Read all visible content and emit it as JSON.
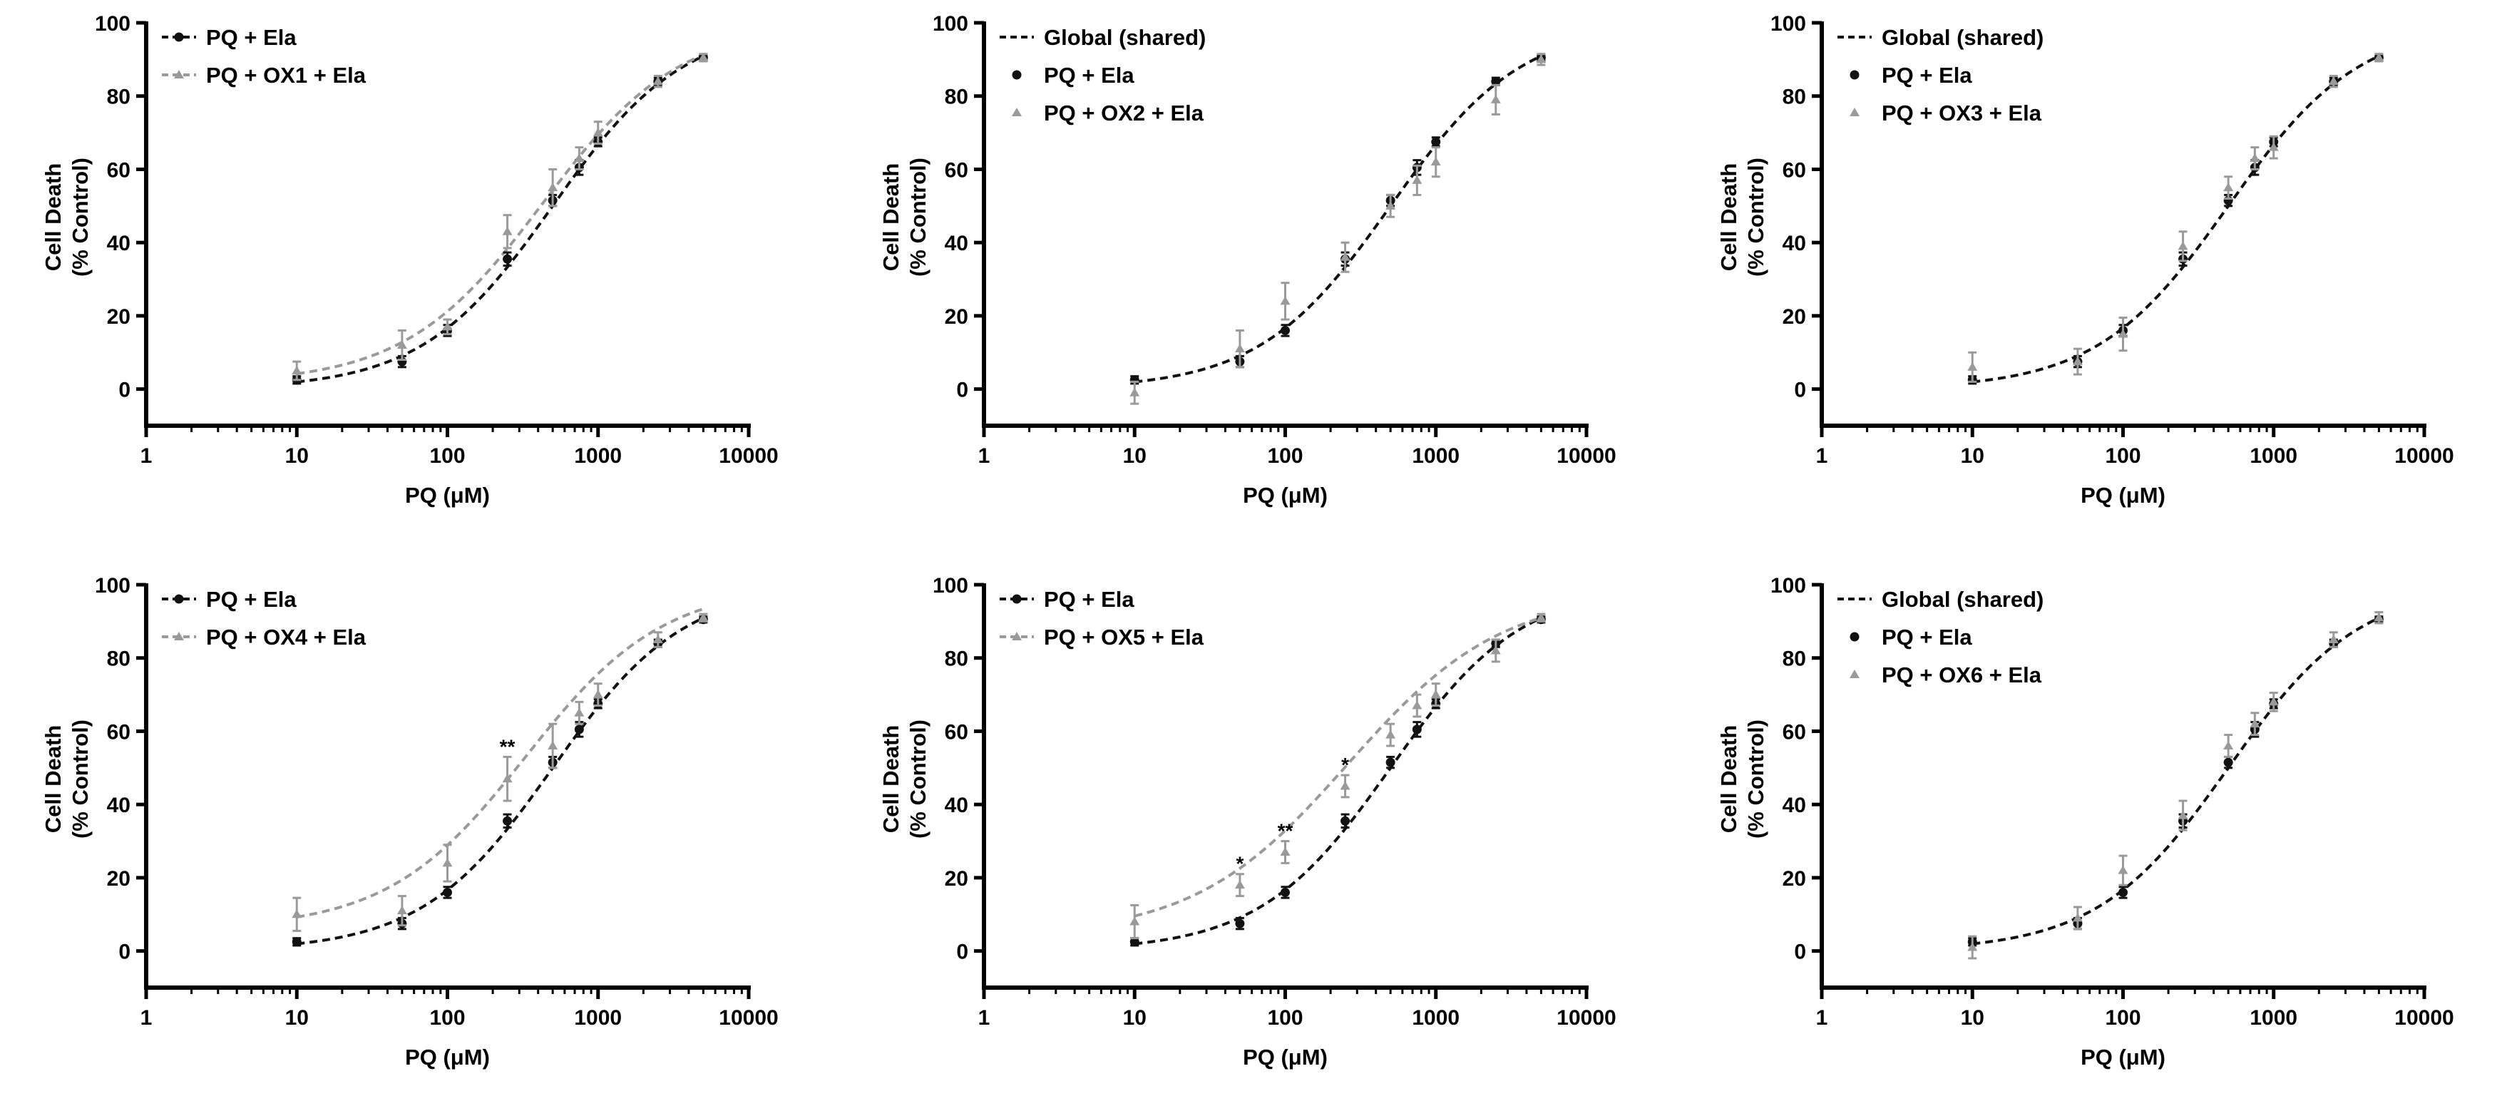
{
  "figure": {
    "panel_count": 6,
    "colors": {
      "black": "#111111",
      "grey": "#9a9a9a",
      "axis": "#000000"
    }
  },
  "chart_data": [
    {
      "type": "scatter",
      "id": "ox1",
      "xlabel": "PQ (μM)",
      "ylabel": "Cell Death",
      "ylabel2": "(% Control)",
      "xscale": "log",
      "xlim": [
        1,
        10000
      ],
      "ylim": [
        -10,
        100
      ],
      "x_ticks": [
        1,
        10,
        100,
        1000,
        10000
      ],
      "x_tick_labels": [
        "1",
        "10",
        "100",
        "1000",
        "10000"
      ],
      "y_ticks": [
        0,
        20,
        40,
        60,
        80,
        100
      ],
      "y_tick_labels": [
        "0",
        "20",
        "40",
        "60",
        "80",
        "100"
      ],
      "legend_position": "top-left",
      "legend": [
        {
          "label": "PQ + Ela",
          "color": "#111111",
          "marker": "circle",
          "style": "line"
        },
        {
          "label": "PQ + OX1 + Ela",
          "color": "#9a9a9a",
          "marker": "triangle",
          "style": "line"
        }
      ],
      "series": [
        {
          "name": "PQ + Ela",
          "color": "#111111",
          "marker": "circle",
          "x": [
            10,
            50,
            100,
            250,
            500,
            750,
            1000,
            2500,
            5000
          ],
          "y": [
            2.5,
            7.5,
            16,
            35.5,
            51.5,
            60.5,
            67.5,
            84,
            90.5
          ],
          "err": [
            1,
            1.5,
            1.5,
            1.8,
            1.5,
            2,
            1.2,
            1,
            0.8
          ]
        },
        {
          "name": "PQ + OX1 + Ela",
          "color": "#9a9a9a",
          "marker": "triangle",
          "x": [
            10,
            50,
            100,
            250,
            500,
            750,
            1000,
            2500,
            5000
          ],
          "y": [
            5,
            12,
            17,
            43,
            55,
            63,
            70,
            84,
            90.5
          ],
          "err": [
            2.5,
            4,
            2,
            4.5,
            5,
            3,
            3,
            1.5,
            1
          ]
        }
      ],
      "curves": [
        {
          "name": "PQ + Ela",
          "color": "#111111",
          "bottom": 0,
          "top": 100,
          "ec50": 500,
          "hill": 1.0
        },
        {
          "name": "PQ + OX1 + Ela",
          "color": "#9a9a9a",
          "bottom": 1.5,
          "top": 100,
          "ec50": 430,
          "hill": 0.95
        }
      ],
      "annotations": []
    },
    {
      "type": "scatter",
      "id": "ox2",
      "xlabel": "PQ (μM)",
      "ylabel": "Cell Death",
      "ylabel2": "(% Control)",
      "xscale": "log",
      "xlim": [
        1,
        10000
      ],
      "ylim": [
        -10,
        100
      ],
      "x_ticks": [
        1,
        10,
        100,
        1000,
        10000
      ],
      "x_tick_labels": [
        "1",
        "10",
        "100",
        "1000",
        "10000"
      ],
      "y_ticks": [
        0,
        20,
        40,
        60,
        80,
        100
      ],
      "y_tick_labels": [
        "0",
        "20",
        "40",
        "60",
        "80",
        "100"
      ],
      "legend_position": "top-left",
      "legend": [
        {
          "label": "Global (shared)",
          "color": "#111111",
          "marker": "none",
          "style": "line"
        },
        {
          "label": "PQ + Ela",
          "color": "#111111",
          "marker": "circle",
          "style": "point"
        },
        {
          "label": "PQ + OX2 + Ela",
          "color": "#9a9a9a",
          "marker": "triangle",
          "style": "point"
        }
      ],
      "series": [
        {
          "name": "PQ + Ela",
          "color": "#111111",
          "marker": "circle",
          "x": [
            10,
            50,
            100,
            250,
            500,
            750,
            1000,
            2500,
            5000
          ],
          "y": [
            2.5,
            7.5,
            16,
            35.5,
            51.5,
            60.5,
            67.5,
            84,
            90.5
          ],
          "err": [
            1,
            1.5,
            1.5,
            1.8,
            1.5,
            2,
            1.2,
            1,
            0.8
          ]
        },
        {
          "name": "PQ + OX2 + Ela",
          "color": "#9a9a9a",
          "marker": "triangle",
          "x": [
            10,
            50,
            100,
            250,
            500,
            750,
            1000,
            2500,
            5000
          ],
          "y": [
            -1,
            11,
            24,
            36,
            50,
            57,
            62,
            79,
            90
          ],
          "err": [
            3,
            5,
            5,
            4,
            3,
            4,
            4,
            4,
            1.5
          ]
        }
      ],
      "curves": [
        {
          "name": "Global (shared)",
          "color": "#111111",
          "bottom": 0,
          "top": 100,
          "ec50": 500,
          "hill": 1.0
        }
      ],
      "annotations": []
    },
    {
      "type": "scatter",
      "id": "ox3",
      "xlabel": "PQ (μM)",
      "ylabel": "Cell Death",
      "ylabel2": "(% Control)",
      "xscale": "log",
      "xlim": [
        1,
        10000
      ],
      "ylim": [
        -10,
        100
      ],
      "x_ticks": [
        1,
        10,
        100,
        1000,
        10000
      ],
      "x_tick_labels": [
        "1",
        "10",
        "100",
        "1000",
        "10000"
      ],
      "y_ticks": [
        0,
        20,
        40,
        60,
        80,
        100
      ],
      "y_tick_labels": [
        "0",
        "20",
        "40",
        "60",
        "80",
        "100"
      ],
      "legend_position": "top-left",
      "legend": [
        {
          "label": "Global (shared)",
          "color": "#111111",
          "marker": "none",
          "style": "line"
        },
        {
          "label": "PQ + Ela",
          "color": "#111111",
          "marker": "circle",
          "style": "point"
        },
        {
          "label": "PQ + OX3 + Ela",
          "color": "#9a9a9a",
          "marker": "triangle",
          "style": "point"
        }
      ],
      "series": [
        {
          "name": "PQ + Ela",
          "color": "#111111",
          "marker": "circle",
          "x": [
            10,
            50,
            100,
            250,
            500,
            750,
            1000,
            2500,
            5000
          ],
          "y": [
            2.5,
            7.5,
            16,
            35.5,
            51.5,
            60.5,
            67.5,
            84,
            90.5
          ],
          "err": [
            1,
            1.5,
            1.5,
            1.8,
            1.5,
            2,
            1.2,
            1,
            0.8
          ]
        },
        {
          "name": "PQ + OX3 + Ela",
          "color": "#9a9a9a",
          "marker": "triangle",
          "x": [
            10,
            50,
            100,
            250,
            500,
            750,
            1000,
            2500,
            5000
          ],
          "y": [
            6,
            7.5,
            15,
            39,
            55,
            63,
            66,
            84,
            90.5
          ],
          "err": [
            4,
            3.5,
            4.5,
            4,
            3,
            3,
            3,
            1.5,
            1
          ]
        }
      ],
      "curves": [
        {
          "name": "Global (shared)",
          "color": "#111111",
          "bottom": 0,
          "top": 100,
          "ec50": 500,
          "hill": 1.0
        }
      ],
      "annotations": []
    },
    {
      "type": "scatter",
      "id": "ox4",
      "xlabel": "PQ (μM)",
      "ylabel": "Cell Death",
      "ylabel2": "(% Control)",
      "xscale": "log",
      "xlim": [
        1,
        10000
      ],
      "ylim": [
        -10,
        100
      ],
      "x_ticks": [
        1,
        10,
        100,
        1000,
        10000
      ],
      "x_tick_labels": [
        "1",
        "10",
        "100",
        "1000",
        "10000"
      ],
      "y_ticks": [
        0,
        20,
        40,
        60,
        80,
        100
      ],
      "y_tick_labels": [
        "0",
        "20",
        "40",
        "60",
        "80",
        "100"
      ],
      "legend_position": "top-left",
      "legend": [
        {
          "label": "PQ + Ela",
          "color": "#111111",
          "marker": "circle",
          "style": "line"
        },
        {
          "label": "PQ + OX4 + Ela",
          "color": "#9a9a9a",
          "marker": "triangle",
          "style": "line"
        }
      ],
      "series": [
        {
          "name": "PQ + Ela",
          "color": "#111111",
          "marker": "circle",
          "x": [
            10,
            50,
            100,
            250,
            500,
            750,
            1000,
            2500,
            5000
          ],
          "y": [
            2.5,
            7.5,
            16,
            35.5,
            51.5,
            60.5,
            67.5,
            84,
            90.5
          ],
          "err": [
            1,
            1.5,
            1.5,
            1.8,
            1.5,
            2,
            1.2,
            1,
            0.8
          ]
        },
        {
          "name": "PQ + OX4 + Ela",
          "color": "#9a9a9a",
          "marker": "triangle",
          "x": [
            10,
            50,
            100,
            250,
            500,
            750,
            1000,
            2500,
            5000
          ],
          "y": [
            10,
            11,
            24,
            47,
            56,
            65,
            70,
            85,
            91
          ],
          "err": [
            4.5,
            4,
            5,
            6,
            6,
            3,
            3,
            2,
            1
          ]
        }
      ],
      "curves": [
        {
          "name": "PQ + Ela",
          "color": "#111111",
          "bottom": 0,
          "top": 100,
          "ec50": 500,
          "hill": 1.0
        },
        {
          "name": "PQ + OX4 + Ela",
          "color": "#9a9a9a",
          "bottom": 6,
          "top": 100,
          "ec50": 330,
          "hill": 0.95
        }
      ],
      "annotations": [
        {
          "text": "**",
          "x": 250,
          "y": 54
        }
      ]
    },
    {
      "type": "scatter",
      "id": "ox5",
      "xlabel": "PQ (μM)",
      "ylabel": "Cell Death",
      "ylabel2": "(% Control)",
      "xscale": "log",
      "xlim": [
        1,
        10000
      ],
      "ylim": [
        -10,
        100
      ],
      "x_ticks": [
        1,
        10,
        100,
        1000,
        10000
      ],
      "x_tick_labels": [
        "1",
        "10",
        "100",
        "1000",
        "10000"
      ],
      "y_ticks": [
        0,
        20,
        40,
        60,
        80,
        100
      ],
      "y_tick_labels": [
        "0",
        "20",
        "40",
        "60",
        "80",
        "100"
      ],
      "legend_position": "top-left",
      "legend": [
        {
          "label": "PQ + Ela",
          "color": "#111111",
          "marker": "circle",
          "style": "line"
        },
        {
          "label": "PQ + OX5 + Ela",
          "color": "#9a9a9a",
          "marker": "triangle",
          "style": "line"
        }
      ],
      "series": [
        {
          "name": "PQ + Ela",
          "color": "#111111",
          "marker": "circle",
          "x": [
            10,
            50,
            100,
            250,
            500,
            750,
            1000,
            2500,
            5000
          ],
          "y": [
            2.5,
            7.5,
            16,
            35.5,
            51.5,
            60.5,
            67.5,
            84,
            90.5
          ],
          "err": [
            1,
            1.5,
            1.5,
            1.8,
            1.5,
            2,
            1.2,
            1,
            0.8
          ]
        },
        {
          "name": "PQ + OX5 + Ela",
          "color": "#9a9a9a",
          "marker": "triangle",
          "x": [
            10,
            50,
            100,
            250,
            500,
            750,
            1000,
            2500,
            5000
          ],
          "y": [
            8,
            18,
            27,
            45,
            59,
            67,
            70,
            82,
            91
          ],
          "err": [
            4.5,
            3,
            3,
            3,
            3,
            3,
            3,
            3,
            1
          ]
        }
      ],
      "curves": [
        {
          "name": "PQ + Ela",
          "color": "#111111",
          "bottom": 0,
          "top": 100,
          "ec50": 500,
          "hill": 1.0
        },
        {
          "name": "PQ + OX5 + Ela",
          "color": "#9a9a9a",
          "bottom": 4,
          "top": 98,
          "ec50": 260,
          "hill": 0.85
        }
      ],
      "annotations": [
        {
          "text": "*",
          "x": 50,
          "y": 22
        },
        {
          "text": "**",
          "x": 100,
          "y": 31
        },
        {
          "text": "*",
          "x": 250,
          "y": 49
        }
      ]
    },
    {
      "type": "scatter",
      "id": "ox6",
      "xlabel": "PQ (μM)",
      "ylabel": "Cell Death",
      "ylabel2": "(% Control)",
      "xscale": "log",
      "xlim": [
        1,
        10000
      ],
      "ylim": [
        -10,
        100
      ],
      "x_ticks": [
        1,
        10,
        100,
        1000,
        10000
      ],
      "x_tick_labels": [
        "1",
        "10",
        "100",
        "1000",
        "10000"
      ],
      "y_ticks": [
        0,
        20,
        40,
        60,
        80,
        100
      ],
      "y_tick_labels": [
        "0",
        "20",
        "40",
        "60",
        "80",
        "100"
      ],
      "legend_position": "top-left",
      "legend": [
        {
          "label": "Global (shared)",
          "color": "#111111",
          "marker": "none",
          "style": "line"
        },
        {
          "label": "PQ + Ela",
          "color": "#111111",
          "marker": "circle",
          "style": "point"
        },
        {
          "label": "PQ + OX6 + Ela",
          "color": "#9a9a9a",
          "marker": "triangle",
          "style": "point"
        }
      ],
      "series": [
        {
          "name": "PQ + Ela",
          "color": "#111111",
          "marker": "circle",
          "x": [
            10,
            50,
            100,
            250,
            500,
            750,
            1000,
            2500,
            5000
          ],
          "y": [
            2.5,
            7.5,
            16,
            35.5,
            51.5,
            60.5,
            67.5,
            84,
            90.5
          ],
          "err": [
            1,
            1.5,
            1.5,
            1.8,
            1.5,
            2,
            1.2,
            1,
            0.8
          ]
        },
        {
          "name": "PQ + OX6 + Ela",
          "color": "#9a9a9a",
          "marker": "triangle",
          "x": [
            10,
            50,
            100,
            250,
            500,
            750,
            1000,
            2500,
            5000
          ],
          "y": [
            1,
            9,
            22,
            37,
            56,
            62,
            68,
            85,
            91
          ],
          "err": [
            3,
            3,
            4,
            4,
            3,
            3,
            2.5,
            2,
            1.5
          ]
        }
      ],
      "curves": [
        {
          "name": "Global (shared)",
          "color": "#111111",
          "bottom": 0,
          "top": 100,
          "ec50": 500,
          "hill": 1.0
        }
      ],
      "annotations": []
    }
  ]
}
